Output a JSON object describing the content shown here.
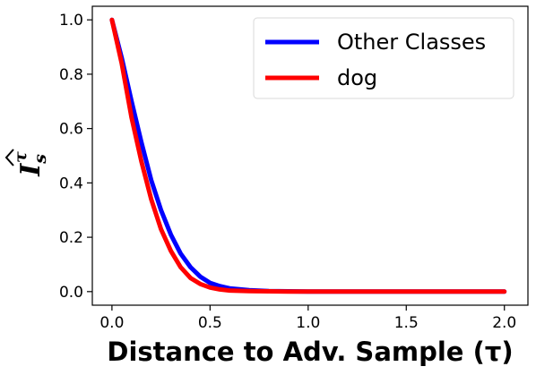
{
  "chart_data": {
    "type": "line",
    "xlabel": "Distance to Adv. Sample (τ)",
    "ylabel": {
      "base": "I",
      "subscript": "s",
      "superscript": "τ"
    },
    "xlim": [
      -0.1,
      2.12
    ],
    "ylim": [
      -0.05,
      1.05
    ],
    "xticks": [
      0.0,
      0.5,
      1.0,
      1.5,
      2.0
    ],
    "xtick_labels": [
      "0.0",
      "0.5",
      "1.0",
      "1.5",
      "2.0"
    ],
    "yticks": [
      0.0,
      0.2,
      0.4,
      0.6,
      0.8,
      1.0
    ],
    "ytick_labels": [
      "0.0",
      "0.2",
      "0.4",
      "0.6",
      "0.8",
      "1.0"
    ],
    "grid": false,
    "legend_position": "top-right",
    "series": [
      {
        "name": "Other Classes",
        "color": "#0000ff",
        "x": [
          0.0,
          0.05,
          0.1,
          0.15,
          0.2,
          0.25,
          0.3,
          0.35,
          0.4,
          0.45,
          0.5,
          0.55,
          0.6,
          0.7,
          0.8,
          0.9,
          1.0,
          1.25,
          1.5,
          1.75,
          2.0
        ],
        "y": [
          1.0,
          0.86,
          0.7,
          0.55,
          0.41,
          0.3,
          0.21,
          0.14,
          0.09,
          0.055,
          0.032,
          0.02,
          0.012,
          0.005,
          0.002,
          0.001,
          0.0,
          0.0,
          0.0,
          0.0,
          0.0
        ]
      },
      {
        "name": "dog",
        "color": "#ff0000",
        "x": [
          0.0,
          0.05,
          0.1,
          0.15,
          0.2,
          0.25,
          0.3,
          0.35,
          0.4,
          0.45,
          0.5,
          0.55,
          0.6,
          0.7,
          0.8,
          0.9,
          1.0,
          1.25,
          1.5,
          1.75,
          2.0
        ],
        "y": [
          1.0,
          0.84,
          0.64,
          0.48,
          0.34,
          0.23,
          0.15,
          0.09,
          0.05,
          0.028,
          0.015,
          0.008,
          0.004,
          0.002,
          0.001,
          0.0,
          0.0,
          0.0,
          0.0,
          0.0,
          0.0
        ]
      }
    ]
  }
}
